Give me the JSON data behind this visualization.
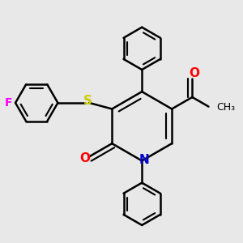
{
  "bg_color": "#e8e8e8",
  "bond_color": "#000000",
  "bond_width": 1.8,
  "atom_colors": {
    "N": "#0000cc",
    "O": "#ff0000",
    "S": "#cccc00",
    "F": "#ff00ff",
    "C": "#000000"
  },
  "font_size_atom": 11,
  "font_size_label": 9
}
